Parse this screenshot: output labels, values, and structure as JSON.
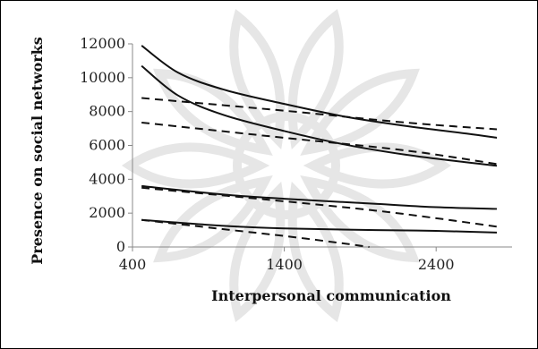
{
  "chart_data": {
    "type": "line",
    "title": "",
    "xlabel": "Interpersonal communication",
    "ylabel": "Presence on social networks",
    "xlim": [
      400,
      2900
    ],
    "ylim": [
      0,
      12000
    ],
    "x_ticks": [
      "400",
      "1400",
      "2400"
    ],
    "y_ticks": [
      "0",
      "2000",
      "4000",
      "6000",
      "8000",
      "10000",
      "12000"
    ],
    "grid": false,
    "legend": "none",
    "series": [
      {
        "style": "solid",
        "x": [
          460,
          700,
          1000,
          1400,
          1800,
          2200,
          2600,
          2800
        ],
        "y": [
          11900,
          10300,
          9300,
          8450,
          7700,
          7150,
          6700,
          6450
        ]
      },
      {
        "style": "solid",
        "x": [
          460,
          700,
          1000,
          1400,
          1800,
          2200,
          2600,
          2800
        ],
        "y": [
          10700,
          8950,
          7800,
          6850,
          6050,
          5450,
          5000,
          4800
        ]
      },
      {
        "style": "dashed",
        "x": [
          460,
          1400,
          2200,
          2800
        ],
        "y": [
          8800,
          8050,
          7350,
          6950
        ]
      },
      {
        "style": "dashed",
        "x": [
          460,
          1400,
          2200,
          2800
        ],
        "y": [
          7350,
          6450,
          5700,
          4900
        ]
      },
      {
        "style": "solid",
        "x": [
          460,
          1000,
          1400,
          2000,
          2400,
          2800
        ],
        "y": [
          3600,
          3100,
          2850,
          2550,
          2350,
          2250
        ]
      },
      {
        "style": "dashed",
        "x": [
          460,
          1400,
          2000,
          2400,
          2800
        ],
        "y": [
          3500,
          2700,
          2150,
          1700,
          1200
        ]
      },
      {
        "style": "solid",
        "x": [
          460,
          1000,
          1400,
          2000,
          2400,
          2800
        ],
        "y": [
          1600,
          1250,
          1100,
          1000,
          950,
          850
        ]
      },
      {
        "style": "dashed",
        "x": [
          460,
          1000,
          1400,
          1800,
          1960
        ],
        "y": [
          1600,
          1050,
          650,
          200,
          0
        ]
      }
    ],
    "colors": {
      "line": "#111111",
      "axis": "#888888",
      "watermark": "#e6e6e6"
    }
  }
}
